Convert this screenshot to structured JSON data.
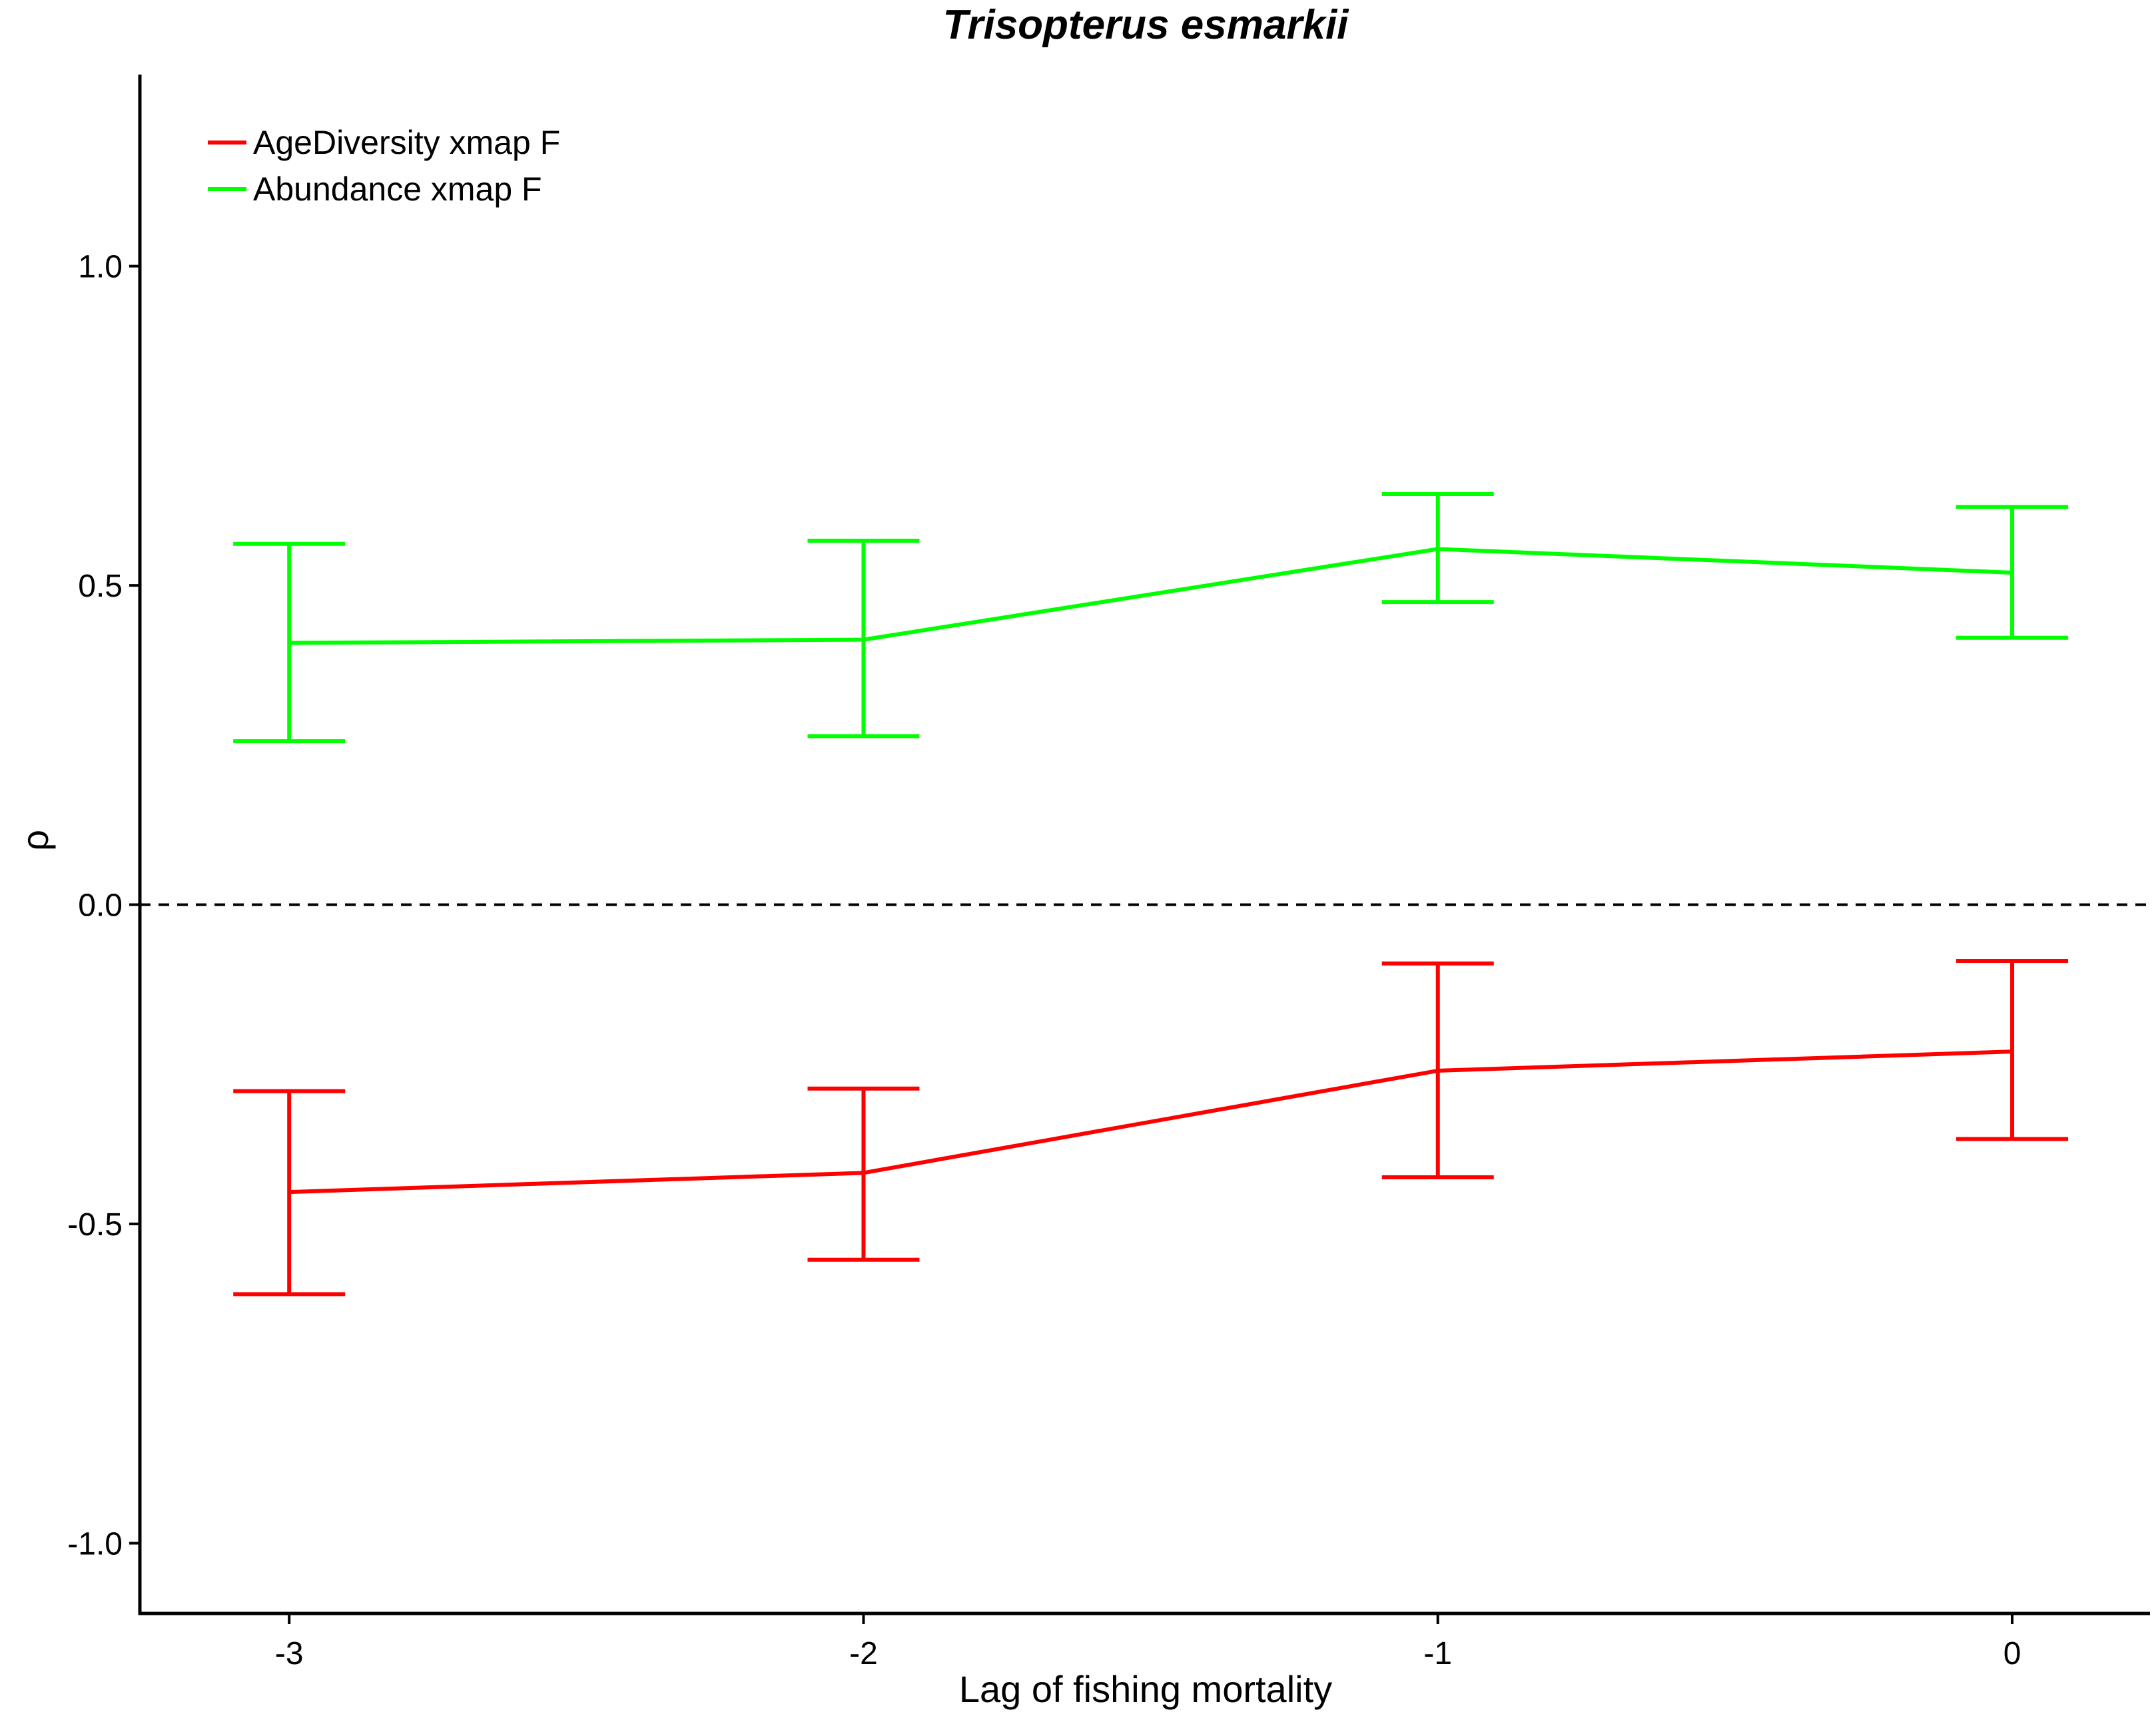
{
  "chart_data": {
    "type": "line",
    "title": "Trisopterus esmarkii",
    "xlabel": "Lag of fishing mortality",
    "ylabel": "ρ",
    "x": [
      -3,
      -2,
      -1,
      0
    ],
    "x_ticks": [
      -3,
      -2,
      -1,
      0
    ],
    "x_tick_labels": [
      "-3",
      "-2",
      "-1",
      "0"
    ],
    "xlim": [
      -3.26,
      0.24
    ],
    "y_ticks": [
      -1.0,
      -0.5,
      0.0,
      0.5,
      1.0
    ],
    "y_tick_labels": [
      "-1.0",
      "-0.5",
      "0.0",
      "0.5",
      "1.0"
    ],
    "ylim": [
      -1.11,
      1.3
    ],
    "grid": false,
    "legend_position": "top-left",
    "reference_line": {
      "y": 0.0,
      "style": "dashed",
      "color": "#000000"
    },
    "series": [
      {
        "name": "AgeDiversity xmap F",
        "color": "#ff0000",
        "values": [
          -0.45,
          -0.42,
          -0.26,
          -0.23
        ],
        "error_low": [
          -0.61,
          -0.556,
          -0.427,
          -0.367
        ],
        "error_high": [
          -0.292,
          -0.288,
          -0.092,
          -0.088
        ]
      },
      {
        "name": "Abundance xmap F",
        "color": "#00ff00",
        "values": [
          0.41,
          0.415,
          0.557,
          0.52
        ],
        "error_low": [
          0.256,
          0.264,
          0.474,
          0.418
        ],
        "error_high": [
          0.565,
          0.57,
          0.643,
          0.623
        ]
      }
    ]
  }
}
